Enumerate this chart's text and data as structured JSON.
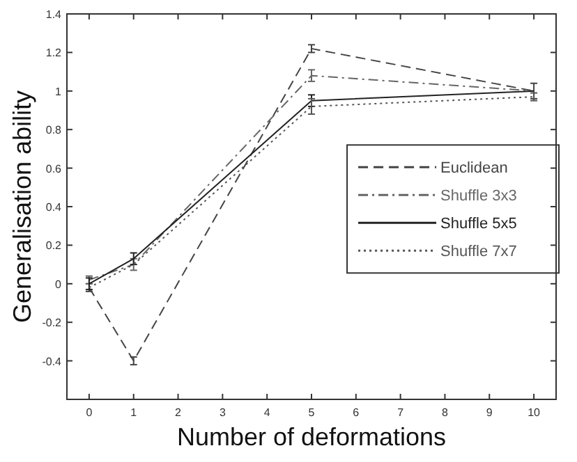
{
  "chart_data": {
    "type": "line",
    "xlabel": "Number of deformations",
    "ylabel": "Generalisation ability",
    "x": [
      0,
      1,
      5,
      10
    ],
    "xlim": [
      -0.5,
      10.5
    ],
    "xticks": [
      0,
      1,
      2,
      3,
      4,
      5,
      6,
      7,
      8,
      9,
      10
    ],
    "ylim": [
      -0.6,
      1.4
    ],
    "yticks": [
      -0.4,
      -0.2,
      0,
      0.2,
      0.4,
      0.6,
      0.8,
      1,
      1.2,
      1.4
    ],
    "grid": false,
    "legend": "right",
    "marker": "none",
    "series": [
      {
        "name": "Euclidean",
        "color": "#444444",
        "line_style": "dashed",
        "values": [
          -0.02,
          -0.4,
          1.22,
          1.0
        ],
        "errors": [
          0.02,
          0.02,
          0.02,
          0.04
        ]
      },
      {
        "name": "Shuffle 3x3",
        "color": "#666666",
        "line_style": "dashdot",
        "values": [
          0.02,
          0.1,
          1.08,
          1.0
        ],
        "errors": [
          0.02,
          0.03,
          0.03,
          null
        ]
      },
      {
        "name": "Shuffle 5x5",
        "color": "#222222",
        "line_style": "solid",
        "values": [
          0.0,
          0.13,
          0.95,
          1.0
        ],
        "errors": [
          0.03,
          0.03,
          0.03,
          null
        ]
      },
      {
        "name": "Shuffle 7x7",
        "color": "#555555",
        "line_style": "dotted",
        "values": [
          -0.02,
          0.1,
          0.92,
          0.97
        ],
        "errors": [
          null,
          null,
          0.04,
          0.02
        ]
      }
    ]
  }
}
